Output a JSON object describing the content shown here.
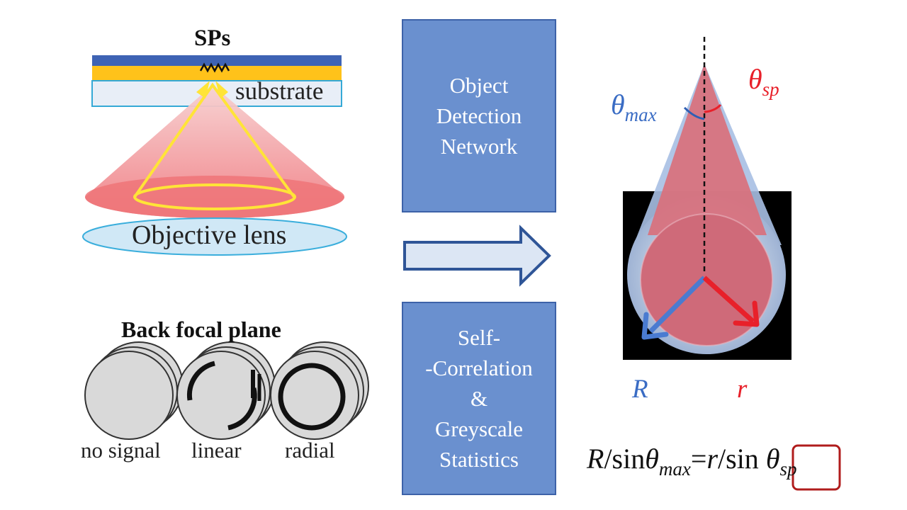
{
  "left_panel": {
    "sps_label": "SPs",
    "substrate_label": "substrate",
    "objective_label": "Objective lens",
    "bfp_title": "Back focal plane",
    "bfp_labels": [
      "no signal",
      "linear",
      "radial"
    ]
  },
  "boxes": {
    "object_detection": [
      "Object",
      "Detection",
      "Network"
    ],
    "self_correlation": [
      "Self-",
      "-Correlation",
      "&",
      "Greyscale",
      "Statistics"
    ]
  },
  "right_panel": {
    "theta_symbol": "θ",
    "theta_max_sub": "max",
    "theta_sp_sub": "sp",
    "R_label": "R",
    "r_label": "r",
    "formula": {
      "part1": "R",
      "part2": "/sin",
      "part3": "θ",
      "part4": "max",
      "part5": "=",
      "part6": "r",
      "part7": "/sin ",
      "part8": "θ",
      "part9": "sp"
    }
  },
  "colors": {
    "box_fill": "#6a90cf",
    "box_border": "#3d62a8",
    "red_label": "#e8202a",
    "blue_label": "#3a6cc4",
    "formula_box": "#b01c1c"
  }
}
